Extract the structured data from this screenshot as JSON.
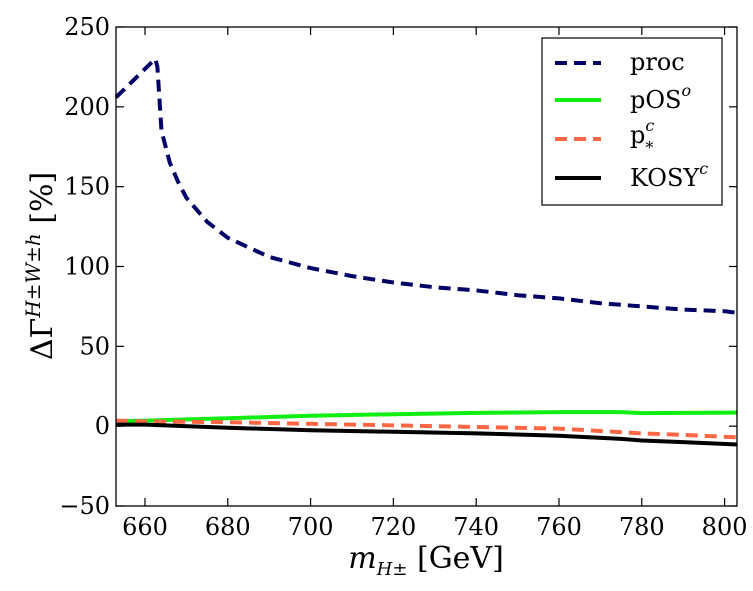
{
  "chart_data": {
    "type": "line",
    "title": "",
    "xlabel_main": "m",
    "xlabel_sub": "H±",
    "xlabel_unit": "[GeV]",
    "ylabel_main": "ΔΓ",
    "ylabel_sup": "H±W±h",
    "ylabel_unit": "[%]",
    "xlim": [
      653,
      803
    ],
    "ylim": [
      -50,
      250
    ],
    "xticks": [
      660,
      680,
      700,
      720,
      740,
      760,
      780,
      800
    ],
    "yticks": [
      -50,
      0,
      50,
      100,
      150,
      200,
      250
    ],
    "xtick_labels": [
      "660",
      "680",
      "700",
      "720",
      "740",
      "760",
      "780",
      "800"
    ],
    "ytick_labels": [
      "−50",
      "0",
      "50",
      "100",
      "150",
      "200",
      "250"
    ],
    "legend_position": "top-right",
    "series": [
      {
        "name": "proc",
        "legend_base": "proc",
        "legend_sup": "",
        "legend_sub": "",
        "color": "#000066",
        "style": "dashed",
        "x": [
          653,
          662.5,
          663,
          664,
          666,
          668,
          670,
          675,
          680,
          690,
          700,
          710,
          720,
          730,
          740,
          750,
          760,
          770,
          780,
          790,
          800,
          803
        ],
        "y": [
          206,
          230,
          225,
          185,
          165,
          153,
          143,
          128,
          118,
          106,
          99,
          94,
          90,
          87,
          85,
          82,
          80,
          77,
          75,
          73,
          72,
          71
        ]
      },
      {
        "name": "pOS^o",
        "legend_base": "pOS",
        "legend_sup": "o",
        "legend_sub": "",
        "color": "#11ee11",
        "style": "solid",
        "x": [
          653,
          660,
          680,
          700,
          720,
          740,
          760,
          775,
          780,
          790,
          803
        ],
        "y": [
          3,
          3.5,
          5,
          6.5,
          7.5,
          8.3,
          8.8,
          8.8,
          8.2,
          8.3,
          8.5
        ]
      },
      {
        "name": "p_*^c",
        "legend_base": "p",
        "legend_sup": "c",
        "legend_sub": "*",
        "color": "#ff6644",
        "style": "dashed",
        "x": [
          653,
          660,
          680,
          700,
          720,
          740,
          760,
          780,
          790,
          803
        ],
        "y": [
          3.5,
          3,
          2.5,
          1.5,
          0.5,
          -0.5,
          -1.5,
          -4.5,
          -5.5,
          -7
        ]
      },
      {
        "name": "KOSY^c",
        "legend_base": "KOSY",
        "legend_sup": "c",
        "legend_sub": "",
        "color": "#000000",
        "style": "solid",
        "x": [
          653,
          660,
          680,
          700,
          720,
          740,
          760,
          775,
          780,
          790,
          803
        ],
        "y": [
          1,
          1,
          -1,
          -2.5,
          -3.5,
          -4.5,
          -6,
          -8,
          -9,
          -10,
          -11.5
        ]
      }
    ]
  }
}
